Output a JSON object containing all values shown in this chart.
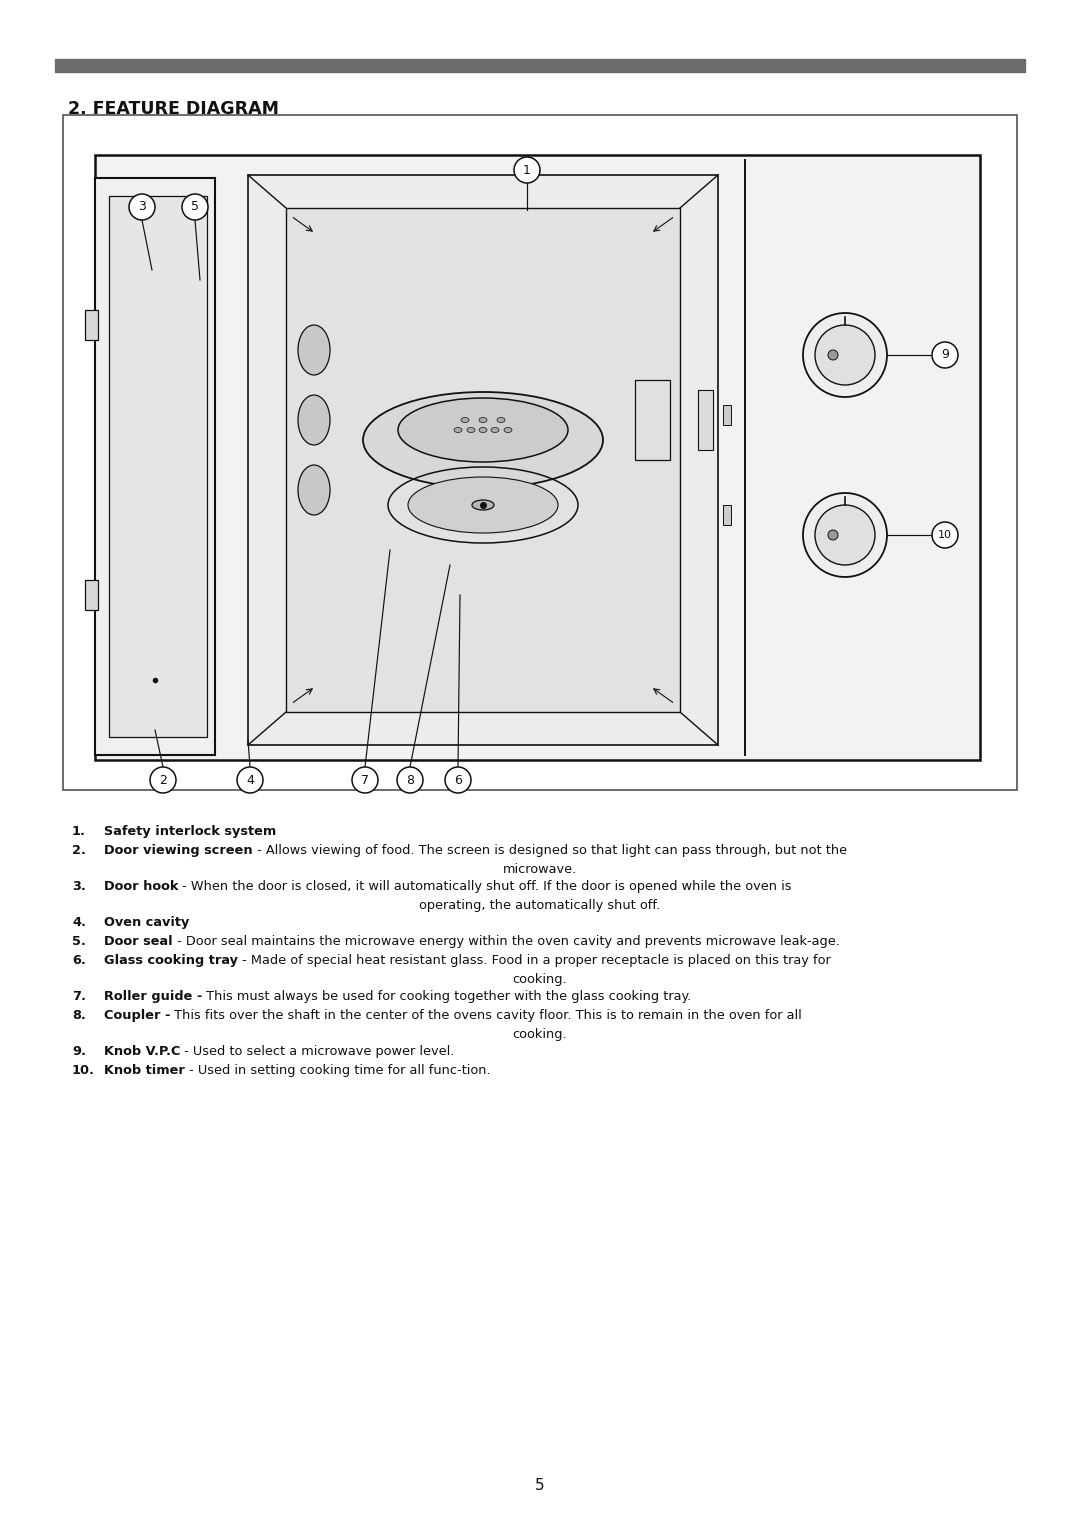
{
  "title": "2. FEATURE DIAGRAM",
  "page_number": "5",
  "bg_color": "#ffffff",
  "header_bar_color": "#6b6b6b",
  "line_color": "#111111",
  "text_entries": [
    {
      "num": "1.",
      "bold": "Safety interlock system",
      "rest": "",
      "extra_line": ""
    },
    {
      "num": "2.",
      "bold": "Door viewing screen",
      "rest": " - Allows viewing of food. The screen is designed so that light can pass through, but not the",
      "extra_line": "microwave."
    },
    {
      "num": "3.",
      "bold": "Door hook",
      "rest": " - When the door is closed, it will automatically shut off. If the door is opened while the oven is",
      "extra_line": "operating, the automatically shut off."
    },
    {
      "num": "4.",
      "bold": "Oven cavity",
      "rest": "",
      "extra_line": ""
    },
    {
      "num": "5.",
      "bold": "Door seal",
      "rest": " - Door seal maintains the microwave energy within the oven cavity and prevents microwave leak-age.",
      "extra_line": ""
    },
    {
      "num": "6.",
      "bold": "Glass cooking tray",
      "rest": " - Made of special heat resistant glass. Food in a proper receptacle is placed on this tray for",
      "extra_line": "cooking."
    },
    {
      "num": "7.",
      "bold": "Roller guide -",
      "rest": " This must always be used for cooking together with the glass cooking tray.",
      "extra_line": ""
    },
    {
      "num": "8.",
      "bold": "Coupler -",
      "rest": " This fits over the shaft in the center of the ovens cavity floor. This is to remain in the oven for all",
      "extra_line": "cooking."
    },
    {
      "num": "9.",
      "bold": "Knob V.P.C",
      "rest": " - Used to select a microwave power level.",
      "extra_line": ""
    },
    {
      "num": "10.",
      "bold": "Knob timer",
      "rest": " - Used in setting cooking time for all func-tion.",
      "extra_line": ""
    }
  ]
}
